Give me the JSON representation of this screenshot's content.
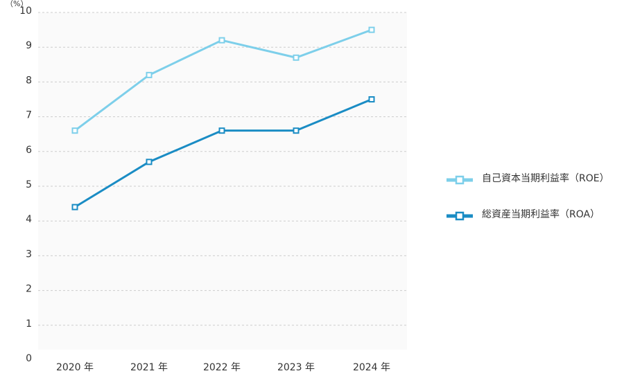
{
  "chart_data": {
    "type": "line",
    "unit": "（%）",
    "categories": [
      "2020 年",
      "2021 年",
      "2022 年",
      "2023 年",
      "2024 年"
    ],
    "series": [
      {
        "name": "自己資本当期利益率（ROE）",
        "color": "#7dcfea",
        "values": [
          6.6,
          8.2,
          9.2,
          8.7,
          9.5
        ]
      },
      {
        "name": "総資産当期利益率（ROA）",
        "color": "#1a8cc4",
        "values": [
          4.4,
          5.7,
          6.6,
          6.6,
          7.5
        ]
      }
    ],
    "ylim": [
      0,
      10
    ],
    "yticks": [
      0,
      1,
      2,
      3,
      4,
      5,
      6,
      7,
      8,
      9,
      10
    ],
    "grid": true
  }
}
